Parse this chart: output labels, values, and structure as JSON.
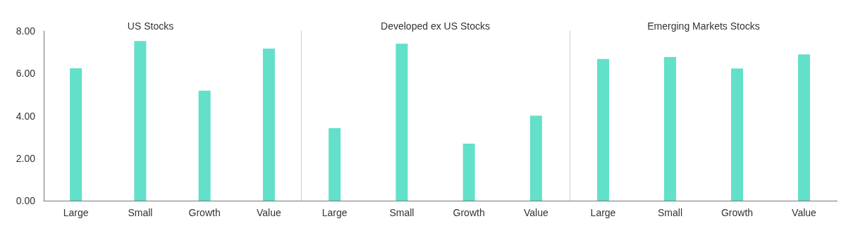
{
  "chart_data": [
    {
      "type": "bar",
      "title": "US Stocks",
      "categories": [
        "Large",
        "Small",
        "Growth",
        "Value"
      ],
      "values": [
        6.24,
        7.53,
        5.19,
        7.17
      ],
      "color": "#63e0c9",
      "ylim": [
        0,
        8
      ],
      "yticks": [
        {
          "value": 0,
          "label": "0.00"
        },
        {
          "value": 2,
          "label": "2.00"
        },
        {
          "value": 4,
          "label": "4.00"
        },
        {
          "value": 6,
          "label": "6.00"
        },
        {
          "value": 8,
          "label": "8.00"
        }
      ]
    },
    {
      "type": "bar",
      "title": "Developed ex US Stocks",
      "categories": [
        "Large",
        "Small",
        "Growth",
        "Value"
      ],
      "values": [
        3.42,
        7.4,
        2.69,
        4.01
      ],
      "color": "#63e0c9",
      "ylim": [
        0,
        8
      ],
      "tick_labels": "x"
    },
    {
      "type": "bar",
      "title": "Emerging Markets Stocks",
      "categories": [
        "Large",
        "Small",
        "Growth",
        "Value"
      ],
      "values": [
        6.68,
        6.77,
        6.23,
        6.9
      ],
      "color": "#63e0c9",
      "ylim": [
        0,
        8
      ],
      "tick_labels": "x"
    }
  ]
}
